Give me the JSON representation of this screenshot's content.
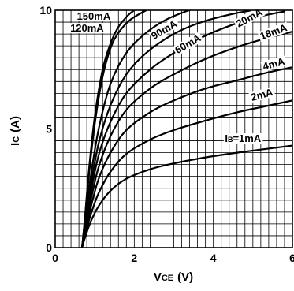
{
  "chart_data": {
    "type": "line",
    "title": "",
    "xlabel": {
      "main": "V",
      "sub": "CE",
      "unit": "(V)"
    },
    "ylabel": {
      "main": "I",
      "sub": "C",
      "unit": "(A)"
    },
    "xlim": [
      0,
      6
    ],
    "ylim": [
      0,
      10
    ],
    "x_ticks": [
      {
        "value": 0,
        "label": "0"
      },
      {
        "value": 2,
        "label": "2"
      },
      {
        "value": 4,
        "label": "4"
      },
      {
        "value": 6,
        "label": "6"
      }
    ],
    "y_ticks": [
      {
        "value": 0,
        "label": "0"
      },
      {
        "value": 5,
        "label": "5"
      },
      {
        "value": 10,
        "label": "10"
      }
    ],
    "x_grid_step": 0.2,
    "y_grid_step": 0.5,
    "grid": true,
    "series": [
      {
        "name": "150mA",
        "label_text": "150mA",
        "points": [
          [
            0.68,
            0
          ],
          [
            0.75,
            1.2
          ],
          [
            0.85,
            3.2
          ],
          [
            1.0,
            5.5
          ],
          [
            1.2,
            7.5
          ],
          [
            1.4,
            8.6
          ],
          [
            1.6,
            9.3
          ],
          [
            1.85,
            9.8
          ],
          [
            2.0,
            10.0
          ]
        ]
      },
      {
        "name": "120mA",
        "label_text": "120mA",
        "points": [
          [
            0.68,
            0
          ],
          [
            0.75,
            1.2
          ],
          [
            0.85,
            3.0
          ],
          [
            1.0,
            5.2
          ],
          [
            1.2,
            7.2
          ],
          [
            1.4,
            8.4
          ],
          [
            1.6,
            9.05
          ],
          [
            1.9,
            9.6
          ],
          [
            2.3,
            10.0
          ]
        ]
      },
      {
        "name": "90mA",
        "label_text": "90mA",
        "points": [
          [
            0.68,
            0
          ],
          [
            0.75,
            1.0
          ],
          [
            0.9,
            3.0
          ],
          [
            1.1,
            5.0
          ],
          [
            1.4,
            6.9
          ],
          [
            1.8,
            8.2
          ],
          [
            2.3,
            9.05
          ],
          [
            2.8,
            9.6
          ],
          [
            3.3,
            9.95
          ],
          [
            3.4,
            10.0
          ]
        ]
      },
      {
        "name": "60mA",
        "label_text": "60mA",
        "points": [
          [
            0.68,
            0
          ],
          [
            0.75,
            0.9
          ],
          [
            0.9,
            2.6
          ],
          [
            1.1,
            4.4
          ],
          [
            1.4,
            6.0
          ],
          [
            1.8,
            7.3
          ],
          [
            2.3,
            8.2
          ],
          [
            3.0,
            9.0
          ],
          [
            3.7,
            9.5
          ],
          [
            4.5,
            9.85
          ],
          [
            5.0,
            10.0
          ]
        ]
      },
      {
        "name": "20mA",
        "label_text": "20mA",
        "points": [
          [
            0.68,
            0
          ],
          [
            0.75,
            0.8
          ],
          [
            0.9,
            2.3
          ],
          [
            1.1,
            3.9
          ],
          [
            1.4,
            5.3
          ],
          [
            1.8,
            6.5
          ],
          [
            2.4,
            7.5
          ],
          [
            3.0,
            8.2
          ],
          [
            3.7,
            8.85
          ],
          [
            4.5,
            9.4
          ],
          [
            5.2,
            9.75
          ],
          [
            5.8,
            9.95
          ]
        ]
      },
      {
        "name": "18mA",
        "label_text": "18mA",
        "points": [
          [
            0.68,
            0
          ],
          [
            0.75,
            0.7
          ],
          [
            0.9,
            2.0
          ],
          [
            1.1,
            3.4
          ],
          [
            1.4,
            4.7
          ],
          [
            1.8,
            5.8
          ],
          [
            2.4,
            6.7
          ],
          [
            3.0,
            7.3
          ],
          [
            3.8,
            7.95
          ],
          [
            4.6,
            8.45
          ],
          [
            5.3,
            8.8
          ],
          [
            6.0,
            9.1
          ]
        ]
      },
      {
        "name": "4mA",
        "label_text": "4mA",
        "points": [
          [
            0.68,
            0
          ],
          [
            0.75,
            0.6
          ],
          [
            0.9,
            1.7
          ],
          [
            1.1,
            2.9
          ],
          [
            1.4,
            4.0
          ],
          [
            1.8,
            4.95
          ],
          [
            2.4,
            5.7
          ],
          [
            3.0,
            6.2
          ],
          [
            3.8,
            6.7
          ],
          [
            4.6,
            7.05
          ],
          [
            5.3,
            7.35
          ],
          [
            6.0,
            7.6
          ]
        ]
      },
      {
        "name": "2mA",
        "label_text": "2mA",
        "points": [
          [
            0.68,
            0
          ],
          [
            0.75,
            0.5
          ],
          [
            0.9,
            1.4
          ],
          [
            1.1,
            2.3
          ],
          [
            1.4,
            3.2
          ],
          [
            1.8,
            3.95
          ],
          [
            2.4,
            4.55
          ],
          [
            3.0,
            4.95
          ],
          [
            3.8,
            5.35
          ],
          [
            4.6,
            5.7
          ],
          [
            5.3,
            5.95
          ],
          [
            6.0,
            6.2
          ]
        ]
      },
      {
        "name": "IB=1mA",
        "label_text": "IB=1mA",
        "points": [
          [
            0.68,
            0
          ],
          [
            0.75,
            0.4
          ],
          [
            0.9,
            1.1
          ],
          [
            1.1,
            1.75
          ],
          [
            1.4,
            2.4
          ],
          [
            1.8,
            2.9
          ],
          [
            2.4,
            3.3
          ],
          [
            3.0,
            3.55
          ],
          [
            3.8,
            3.8
          ],
          [
            4.6,
            4.0
          ],
          [
            5.3,
            4.15
          ],
          [
            6.0,
            4.3
          ]
        ]
      }
    ],
    "label_positions": [
      {
        "series": "150mA",
        "x": 0.55,
        "y": 9.6,
        "anchor": "start"
      },
      {
        "series": "120mA",
        "x": 0.38,
        "y": 9.1,
        "anchor": "start"
      },
      {
        "series": "90mA",
        "x": 2.8,
        "y": 9.05,
        "anchor": "middle",
        "rotate": -30
      },
      {
        "series": "60mA",
        "x": 3.4,
        "y": 8.45,
        "anchor": "middle",
        "rotate": -30
      },
      {
        "series": "20mA",
        "x": 4.95,
        "y": 9.55,
        "anchor": "middle",
        "rotate": -28
      },
      {
        "series": "18mA",
        "x": 5.55,
        "y": 8.95,
        "anchor": "middle",
        "rotate": -20
      },
      {
        "series": "4mA",
        "x": 5.55,
        "y": 7.6,
        "anchor": "middle",
        "rotate": -15
      },
      {
        "series": "2mA",
        "x": 5.25,
        "y": 6.3,
        "anchor": "middle",
        "rotate": -15
      },
      {
        "series": "IB=1mA",
        "x": 4.75,
        "y": 4.45,
        "anchor": "middle"
      }
    ]
  }
}
